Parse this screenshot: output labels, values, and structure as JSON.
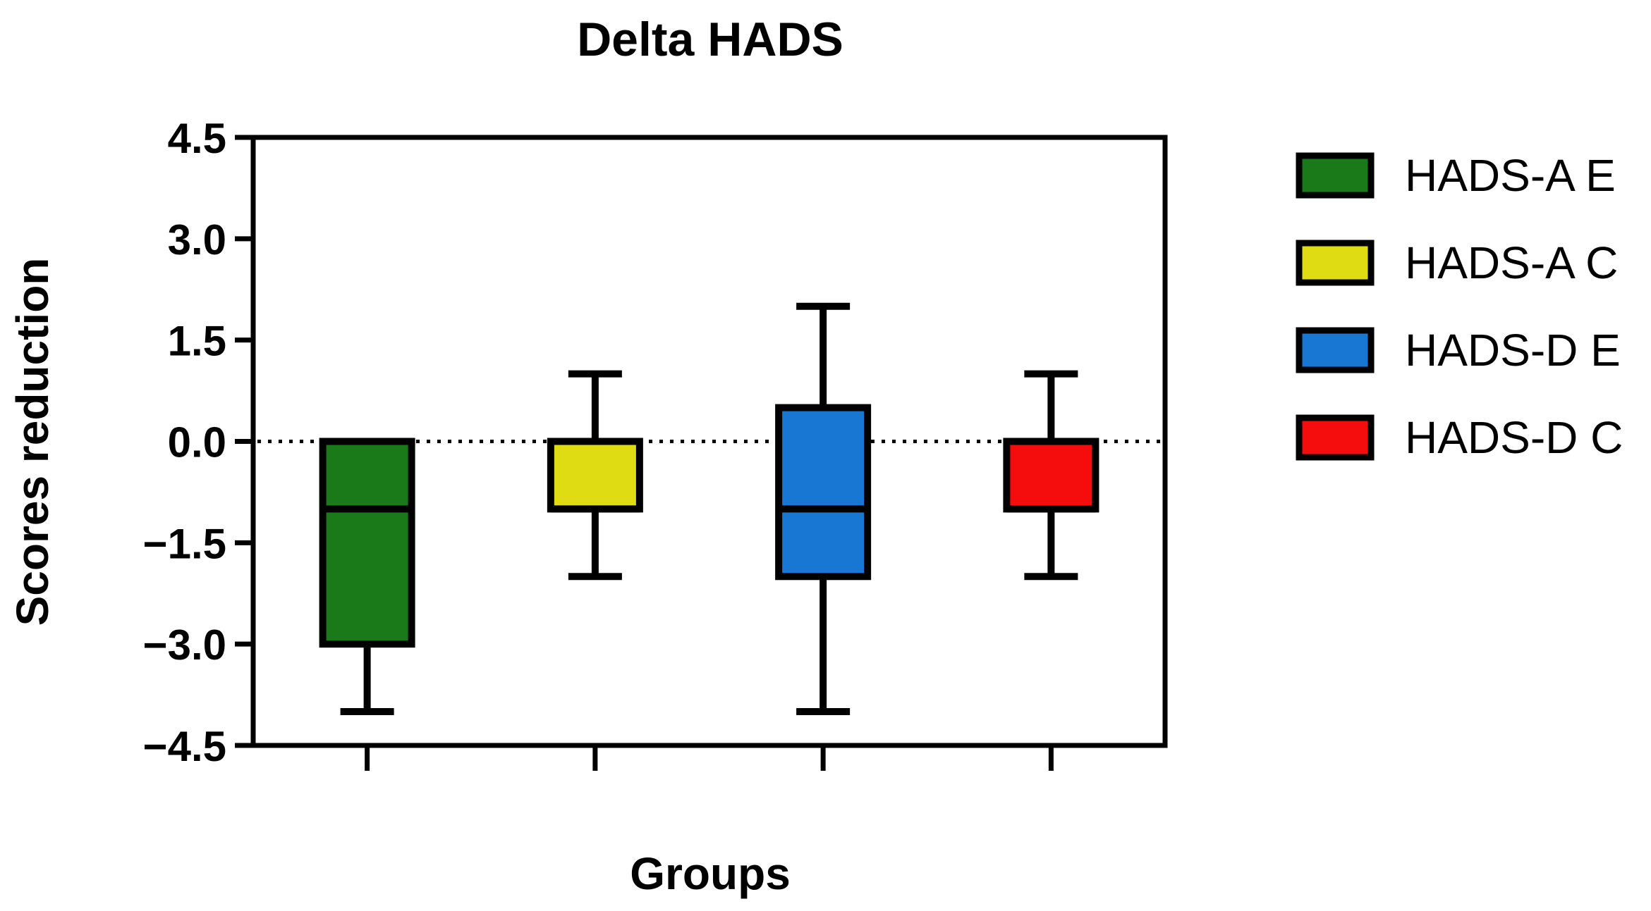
{
  "chart_data": {
    "type": "box",
    "title": "Delta HADS",
    "xlabel": "Groups",
    "ylabel": "Scores reduction",
    "ylim": [
      -4.5,
      4.5
    ],
    "yticks": [
      4.5,
      3.0,
      1.5,
      0.0,
      -1.5,
      -3.0,
      -4.5
    ],
    "ytick_labels": [
      "4.5",
      "3.0",
      "1.5",
      "0.0",
      "−1.5",
      "−3.0",
      "−4.5"
    ],
    "reference_line": {
      "y": 0,
      "style": "dotted"
    },
    "legend_position": "right",
    "series": [
      {
        "name": "HADS-A E",
        "color": "#1a7a1a",
        "min": -4,
        "q1": -3,
        "median": -1,
        "q3": 0,
        "max": 0
      },
      {
        "name": "HADS-A C",
        "color": "#e0dc14",
        "min": -2,
        "q1": -1,
        "median": -1,
        "q3": 0,
        "max": 1
      },
      {
        "name": "HADS-D E",
        "color": "#1877d2",
        "min": -4,
        "q1": -2,
        "median": -1,
        "q3": 0.5,
        "max": 2
      },
      {
        "name": "HADS-D C",
        "color": "#f50c0c",
        "min": -2,
        "q1": -1,
        "median": -1,
        "q3": 0,
        "max": 1
      }
    ]
  }
}
